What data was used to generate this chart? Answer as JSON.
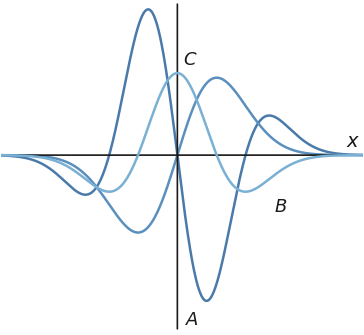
{
  "background_color": "#ffffff",
  "axis_color": "#1a1a1a",
  "curve_color_dark": "#4a7aaa",
  "curve_color_mid": "#5b8fbe",
  "curve_color_light": "#7ab0d4",
  "label_A": "A",
  "label_B": "B",
  "label_C": "C",
  "label_x": "x",
  "xlim": [
    -3.8,
    4.0
  ],
  "ylim": [
    -1.55,
    1.35
  ],
  "figsize": [
    3.64,
    3.35
  ],
  "dpi": 100,
  "sigma": 0.9
}
